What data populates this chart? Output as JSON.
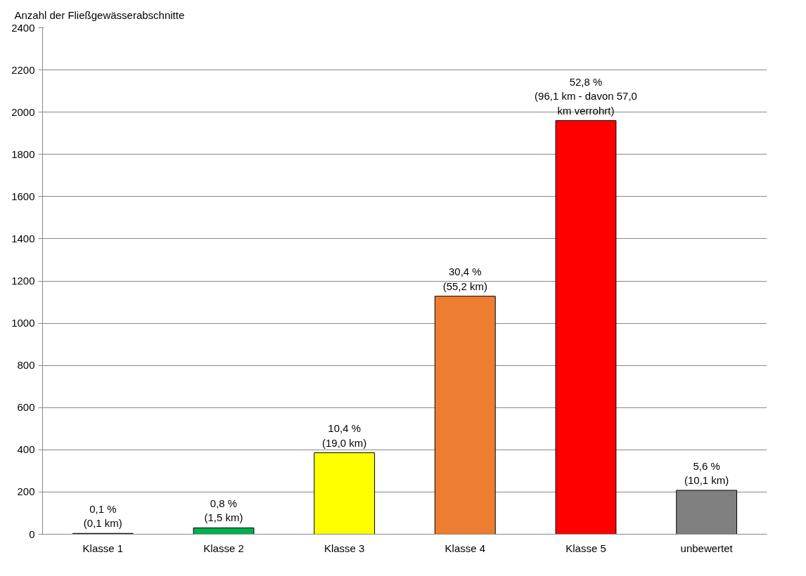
{
  "chart_data": {
    "type": "bar",
    "ylabel": "Anzahl der Fließgewässerabschnitte",
    "categories": [
      "Klasse 1",
      "Klasse 2",
      "Klasse 3",
      "Klasse 4",
      "Klasse 5",
      "unbewertet"
    ],
    "values": [
      4,
      30,
      386,
      1128,
      1960,
      208
    ],
    "colors": [
      "#7f7f7f",
      "#00b050",
      "#ffff00",
      "#ed7d31",
      "#ff0000",
      "#808080"
    ],
    "annotations": [
      {
        "text": "0,1 %\n(0,1 km)",
        "x": "Klasse 1",
        "y": 4
      },
      {
        "text": "0,8 %\n(1,5 km)",
        "x": "Klasse 2",
        "y": 30
      },
      {
        "text": "10,4 %\n(19,0 km)",
        "x": "Klasse 3",
        "y": 386
      },
      {
        "text": "30,4 %\n(55,2 km)",
        "x": "Klasse 4",
        "y": 1128
      },
      {
        "text": "52,8 %\n(96,1 km - davon 57,0\nkm verrohrt)",
        "x": "Klasse 5",
        "y": 1960
      },
      {
        "text": "5,6 %\n(10,1 km)",
        "x": "unbewertet",
        "y": 208
      }
    ],
    "ylim": [
      0,
      2400
    ],
    "yticks": [
      0,
      200,
      400,
      600,
      800,
      1000,
      1200,
      1400,
      1600,
      1800,
      2000,
      2200,
      2400
    ],
    "grid": "y"
  }
}
